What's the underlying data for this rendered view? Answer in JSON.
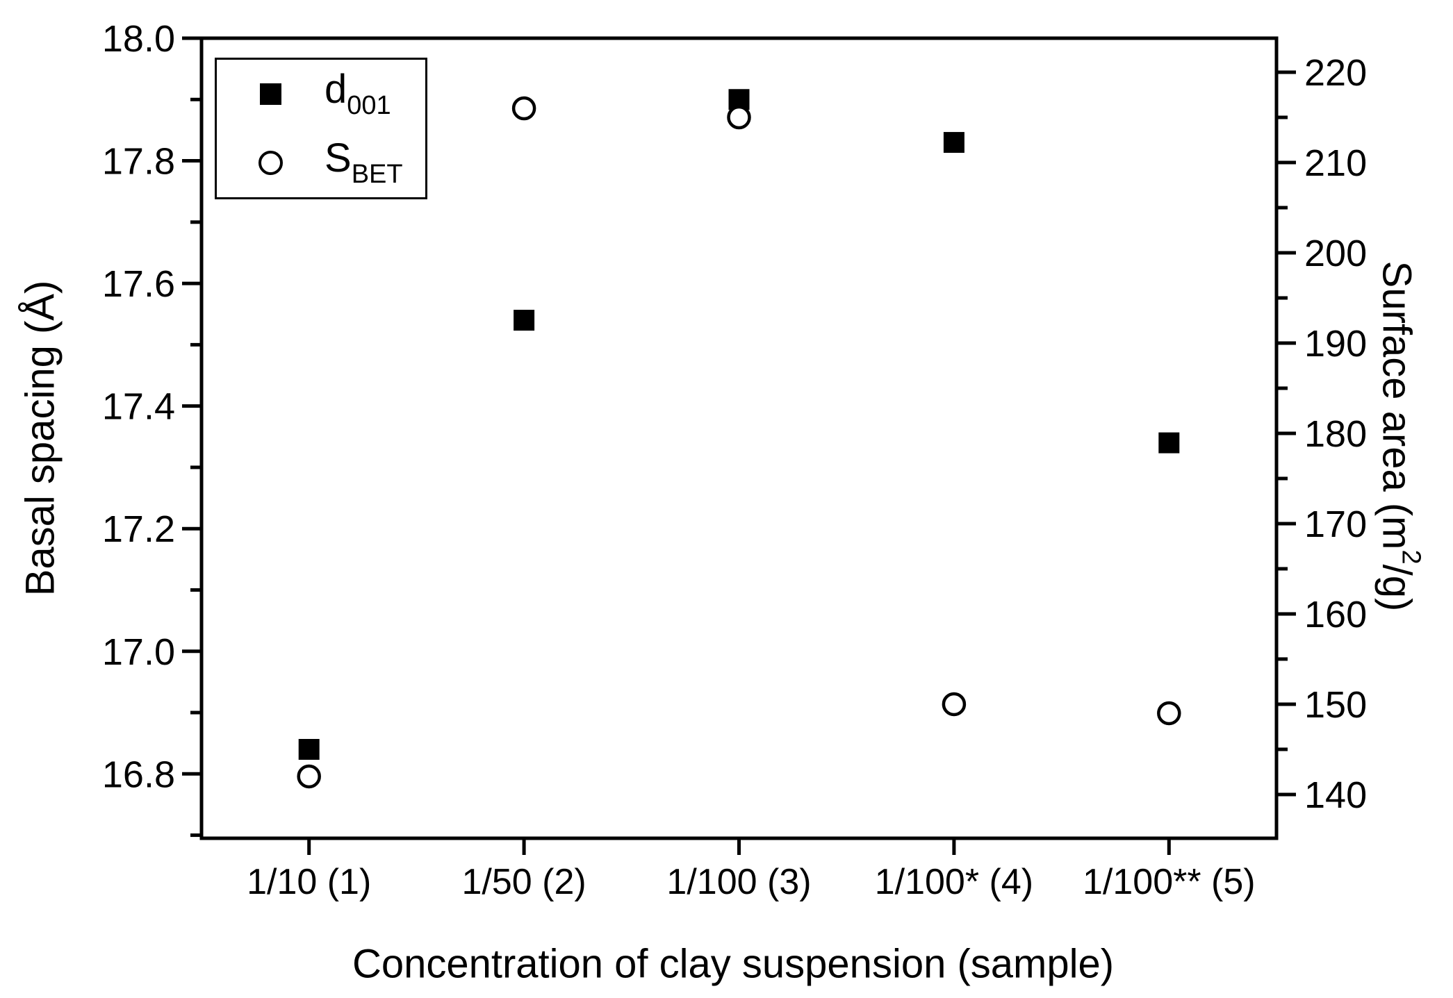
{
  "figure": {
    "background_color": "#ffffff",
    "foreground_color": "#000000"
  },
  "chart_data": {
    "type": "scatter",
    "title": "",
    "xlabel": "Concentration of clay suspension (sample)",
    "ylabel_left": "Basal spacing (Å)",
    "ylabel_right": "Surface area (m2/g)",
    "categories": [
      "1/10 (1)",
      "1/50 (2)",
      "1/100 (3)",
      "1/100* (4)",
      "1/100** (5)"
    ],
    "series": [
      {
        "name": "d001",
        "axis": "left",
        "marker": "filled-square",
        "color": "#000000",
        "values": [
          16.84,
          17.54,
          17.9,
          17.83,
          17.34
        ]
      },
      {
        "name": "SBET",
        "axis": "right",
        "marker": "open-circle",
        "color": "#000000",
        "values": [
          142,
          216,
          215,
          150,
          149
        ]
      }
    ],
    "left_axis": {
      "label": "Basal spacing (Å)",
      "min": 16.695,
      "max": 18.0,
      "major_tick_values": [
        18.0,
        17.8,
        17.6,
        17.4,
        17.2,
        17.0,
        16.8
      ],
      "major_tick_labels": [
        "18.0",
        "17.8",
        "17.6",
        "17.4",
        "17.2",
        "17.0",
        "16.8"
      ],
      "minor_tick_values": [
        17.9,
        17.7,
        17.5,
        17.3,
        17.1,
        16.9,
        16.7
      ]
    },
    "right_axis": {
      "label_pre": "Surface area (m",
      "label_sup": "2",
      "label_post": "/g)",
      "min": 135.15,
      "max": 223.77,
      "major_tick_values": [
        220,
        210,
        200,
        190,
        180,
        170,
        160,
        150,
        140
      ],
      "major_tick_labels": [
        "220",
        "210",
        "200",
        "190",
        "180",
        "170",
        "160",
        "150",
        "140"
      ],
      "minor_tick_values": [
        215,
        205,
        195,
        185,
        175,
        165,
        155,
        145
      ]
    },
    "grid": false,
    "legend_position": "top-left"
  },
  "legend": {
    "items": [
      {
        "main": "d",
        "sub": "001"
      },
      {
        "main": "S",
        "sub": "BET"
      }
    ]
  }
}
